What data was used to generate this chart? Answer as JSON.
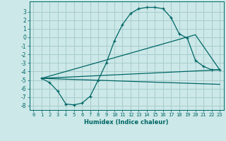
{
  "xlabel": "Humidex (Indice chaleur)",
  "background_color": "#cce8e8",
  "grid_color": "#a8cccc",
  "line_color": "#006666",
  "xlim": [
    -0.5,
    23.5
  ],
  "ylim": [
    -8.5,
    4.2
  ],
  "xticks": [
    0,
    1,
    2,
    3,
    4,
    5,
    6,
    7,
    8,
    9,
    10,
    11,
    12,
    13,
    14,
    15,
    16,
    17,
    18,
    19,
    20,
    21,
    22,
    23
  ],
  "yticks": [
    -8,
    -7,
    -6,
    -5,
    -4,
    -3,
    -2,
    -1,
    0,
    1,
    2,
    3
  ],
  "line1_x": [
    1,
    2,
    3,
    4,
    5,
    6,
    7,
    8,
    9,
    10,
    11,
    12,
    13,
    14,
    15,
    16,
    17,
    18,
    19,
    20,
    21,
    22,
    23
  ],
  "line1_y": [
    -4.8,
    -5.3,
    -6.3,
    -7.8,
    -7.9,
    -7.7,
    -6.9,
    -5.0,
    -3.0,
    -0.4,
    1.5,
    2.8,
    3.35,
    3.5,
    3.5,
    3.35,
    2.3,
    0.4,
    -0.1,
    -2.7,
    -3.4,
    -3.8,
    -3.8
  ],
  "line2_x": [
    1,
    23
  ],
  "line2_y": [
    -4.8,
    -3.8
  ],
  "line3_x": [
    1,
    20,
    23
  ],
  "line3_y": [
    -4.8,
    0.3,
    -3.8
  ],
  "line4_x": [
    1,
    23
  ],
  "line4_y": [
    -4.8,
    -5.5
  ]
}
